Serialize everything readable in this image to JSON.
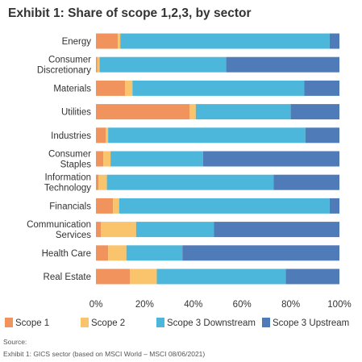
{
  "chart_data": {
    "type": "bar",
    "orientation": "horizontal",
    "stacked": true,
    "title": "Exhibit 1: Share of scope 1,2,3, by sector",
    "categories": [
      [
        "Energy"
      ],
      [
        "Consumer",
        "Discretionary"
      ],
      [
        "Materials"
      ],
      [
        "Utilities"
      ],
      [
        "Industries"
      ],
      [
        "Consumer",
        "Staples"
      ],
      [
        "Information",
        "Technology"
      ],
      [
        "Financials"
      ],
      [
        "Communication",
        "Services"
      ],
      [
        "Health Care"
      ],
      [
        "Real Estate"
      ]
    ],
    "series": [
      {
        "name": "Scope 1",
        "color": "#f0935c",
        "values": [
          9,
          0.5,
          12,
          38.5,
          4,
          3,
          1,
          7,
          2,
          5,
          14
        ]
      },
      {
        "name": "Scope 2",
        "color": "#f9c46b",
        "values": [
          1,
          1,
          3,
          2.5,
          1,
          3,
          3.5,
          2.5,
          14.5,
          7.5,
          11
        ]
      },
      {
        "name": "Scope 3 Downstream",
        "color": "#4cb7db",
        "values": [
          86,
          52,
          70.5,
          39,
          81,
          38,
          68.5,
          86.5,
          32,
          23,
          53
        ]
      },
      {
        "name": "Scope 3 Upstream",
        "color": "#4f7bb8",
        "values": [
          4,
          46.5,
          14.5,
          20,
          14,
          56,
          27,
          4,
          51.5,
          64.5,
          22
        ]
      }
    ],
    "xlim": [
      0,
      100
    ],
    "xticks": [
      "0%",
      "20%",
      "40%",
      "60%",
      "80%",
      "100%"
    ],
    "grid": false,
    "legend_position": "bottom"
  },
  "source": "Source:",
  "footnote": "Exhibit 1: GICS sector (based on MSCI World – MSCI 08/06/2021)"
}
